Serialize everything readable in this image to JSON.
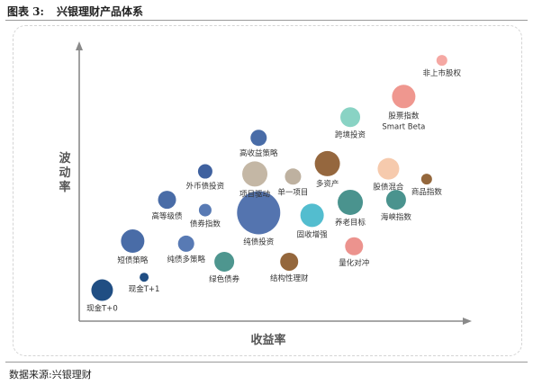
{
  "figure": {
    "label": "图表 3:",
    "title": "兴银理财产品体系"
  },
  "source_note": "数据来源:兴银理财",
  "chart_data": {
    "type": "bubble",
    "xlabel": "收益率",
    "ylabel": "波动率",
    "xlim": [
      0,
      100
    ],
    "ylim": [
      0,
      100
    ],
    "grid": false,
    "legend": "none",
    "points": [
      {
        "name": "现金T+0",
        "x": 6,
        "y": 12,
        "size": 12,
        "color": "#0d3f78",
        "label_pos": "below"
      },
      {
        "name": "现金T+1",
        "x": 17,
        "y": 17,
        "size": 5,
        "color": "#0d3f78",
        "label_pos": "below"
      },
      {
        "name": "短债策略",
        "x": 14,
        "y": 31,
        "size": 13,
        "color": "#3a5fa0",
        "label_pos": "below"
      },
      {
        "name": "纯债多策略",
        "x": 28,
        "y": 30,
        "size": 9,
        "color": "#4a6fae",
        "label_pos": "below"
      },
      {
        "name": "绿色债券",
        "x": 38,
        "y": 23,
        "size": 11,
        "color": "#3f8d85",
        "label_pos": "below"
      },
      {
        "name": "高等级债",
        "x": 23,
        "y": 47,
        "size": 10,
        "color": "#3a5fa0",
        "label_pos": "below"
      },
      {
        "name": "债券指数",
        "x": 33,
        "y": 43,
        "size": 7,
        "color": "#4a6fae",
        "label_pos": "below"
      },
      {
        "name": "外币债投资",
        "x": 33,
        "y": 58,
        "size": 8,
        "color": "#2f5497",
        "label_pos": "below"
      },
      {
        "name": "纯债投资",
        "x": 47,
        "y": 42,
        "size": 24,
        "color": "#4568a8",
        "label_pos": "below"
      },
      {
        "name": "项目驱动",
        "x": 46,
        "y": 57,
        "size": 14,
        "color": "#bfb19d",
        "label_pos": "below"
      },
      {
        "name": "单一项目",
        "x": 56,
        "y": 56,
        "size": 9,
        "color": "#b8aa98",
        "label_pos": "below"
      },
      {
        "name": "高收益策略",
        "x": 47,
        "y": 71,
        "size": 9,
        "color": "#3a5fa0",
        "label_pos": "below"
      },
      {
        "name": "固收增强",
        "x": 61,
        "y": 41,
        "size": 13,
        "color": "#44b7cb",
        "label_pos": "below"
      },
      {
        "name": "结构性理财",
        "x": 55,
        "y": 23,
        "size": 10,
        "color": "#8b5a2b",
        "label_pos": "below"
      },
      {
        "name": "多资产",
        "x": 65,
        "y": 61,
        "size": 14,
        "color": "#8c5a2e",
        "label_pos": "below"
      },
      {
        "name": "养老目标",
        "x": 71,
        "y": 46,
        "size": 14,
        "color": "#3b8a84",
        "label_pos": "below"
      },
      {
        "name": "量化对冲",
        "x": 72,
        "y": 29,
        "size": 10,
        "color": "#ea8a84",
        "label_pos": "below"
      },
      {
        "name": "跨境投资",
        "x": 71,
        "y": 79,
        "size": 11,
        "color": "#7fcfbf",
        "label_pos": "below"
      },
      {
        "name": "股债混合",
        "x": 81,
        "y": 59,
        "size": 12,
        "color": "#f5c6a6",
        "label_pos": "below"
      },
      {
        "name": "海峡指数",
        "x": 83,
        "y": 47,
        "size": 11,
        "color": "#3b8a84",
        "label_pos": "below"
      },
      {
        "name": "商品指数",
        "x": 91,
        "y": 55,
        "size": 6,
        "color": "#8b5a2b",
        "label_pos": "below"
      },
      {
        "name": "股票指数",
        "x": 85,
        "y": 87,
        "size": 13,
        "color": "#ee8e86",
        "label_pos": "below"
      },
      {
        "name": "Smart Beta",
        "x": 85,
        "y": 87,
        "size": 0,
        "color": "#ee8e86",
        "label_pos": "below2"
      },
      {
        "name": "非上市股权",
        "x": 95,
        "y": 101,
        "size": 6,
        "color": "#f4a19b",
        "label_pos": "below"
      }
    ]
  }
}
